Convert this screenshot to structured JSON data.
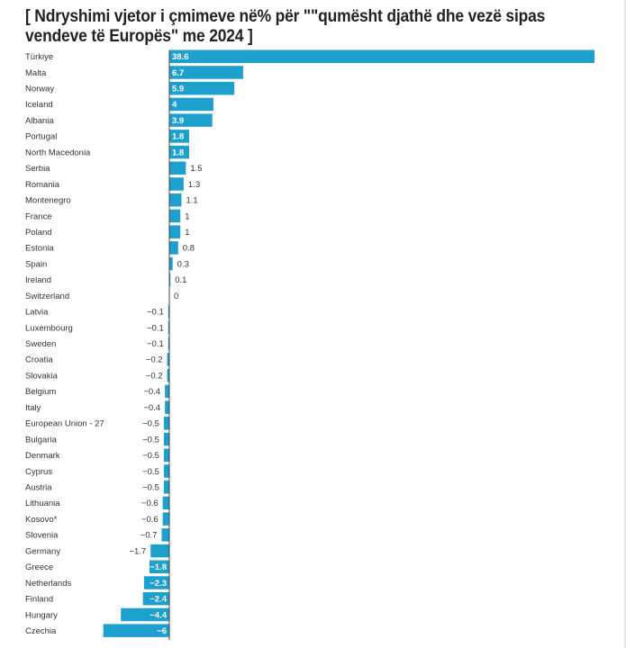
{
  "chart_data": {
    "type": "bar",
    "orientation": "horizontal",
    "title": "[ Ndryshimi vjetor i çmimeve në% për \"\"qumësht  djathë dhe vezë sipas vendeve të Europës\" me 2024 ]",
    "xlabel": "",
    "ylabel": "",
    "bar_color": "#1ea0cf",
    "grid": false,
    "legend": "none",
    "xlim": [
      -6,
      38.6
    ],
    "categories": [
      "Türkiye",
      "Malta",
      "Norway",
      "Iceland",
      "Albania",
      "Portugal",
      "North Macedonia",
      "Serbia",
      "Romania",
      "Montenegro",
      "France",
      "Poland",
      "Estonia",
      "Spain",
      "Ireland",
      "Switzerland",
      "Latvia",
      "Luxembourg",
      "Sweden",
      "Croatia",
      "Slovakia",
      "Belgium",
      "Italy",
      "European Union - 27",
      "Bulgaria",
      "Denmark",
      "Cyprus",
      "Austria",
      "Lithuania",
      "Kosovo*",
      "Slovenia",
      "Germany",
      "Greece",
      "Netherlands",
      "Finland",
      "Hungary",
      "Czechia"
    ],
    "values": [
      38.6,
      6.7,
      5.9,
      4,
      3.9,
      1.8,
      1.8,
      1.5,
      1.3,
      1.1,
      1,
      1,
      0.8,
      0.3,
      0.1,
      0,
      -0.1,
      -0.1,
      -0.1,
      -0.2,
      -0.2,
      -0.4,
      -0.4,
      -0.5,
      -0.5,
      -0.5,
      -0.5,
      -0.5,
      -0.6,
      -0.6,
      -0.7,
      -1.7,
      -1.8,
      -2.3,
      -2.4,
      -4.4,
      -6
    ],
    "labels": [
      "38.6",
      "6.7",
      "5.9",
      "4",
      "3.9",
      "1.8",
      "1.8",
      "1.5",
      "1.3",
      "1.1",
      "1",
      "1",
      "0.8",
      "0.3",
      "0.1",
      "0",
      "−0.1",
      "−0.1",
      "−0.1",
      "−0.2",
      "−0.2",
      "−0.4",
      "−0.4",
      "−0.5",
      "−0.5",
      "−0.5",
      "−0.5",
      "−0.5",
      "−0.6",
      "−0.6",
      "−0.7",
      "−1.7",
      "−1.8",
      "−2.3",
      "−2.4",
      "−4.4",
      "−6"
    ]
  }
}
